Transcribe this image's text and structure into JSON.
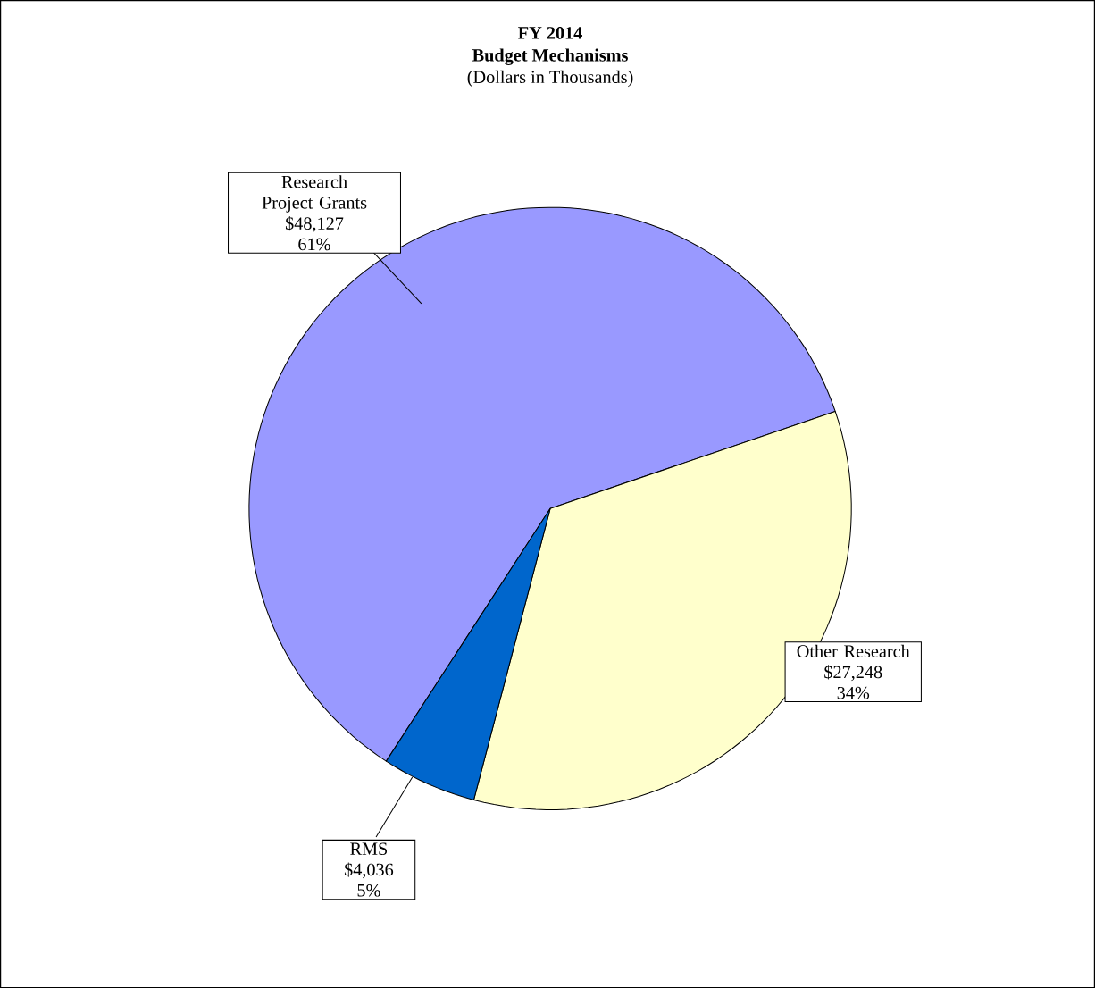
{
  "chart_data": {
    "type": "pie",
    "title": "FY 2014",
    "subtitle": "Budget Mechanisms",
    "categories": [
      "Research Project Grants",
      "Other Research",
      "RMS"
    ],
    "values": [
      48127,
      27248,
      4036
    ],
    "colors": [
      "#9999ff",
      "#ffffcc",
      "#0066cc"
    ],
    "value_labels": [
      "$48,127",
      "$27,248",
      "$4,036"
    ],
    "annotations": [
      "(Dollars in Thousands)",
      {
        "text": "61%",
        "x": "Research Project Grants"
      },
      {
        "text": "34%",
        "x": "Other Research"
      },
      {
        "text": "5%",
        "x": "RMS"
      }
    ]
  }
}
